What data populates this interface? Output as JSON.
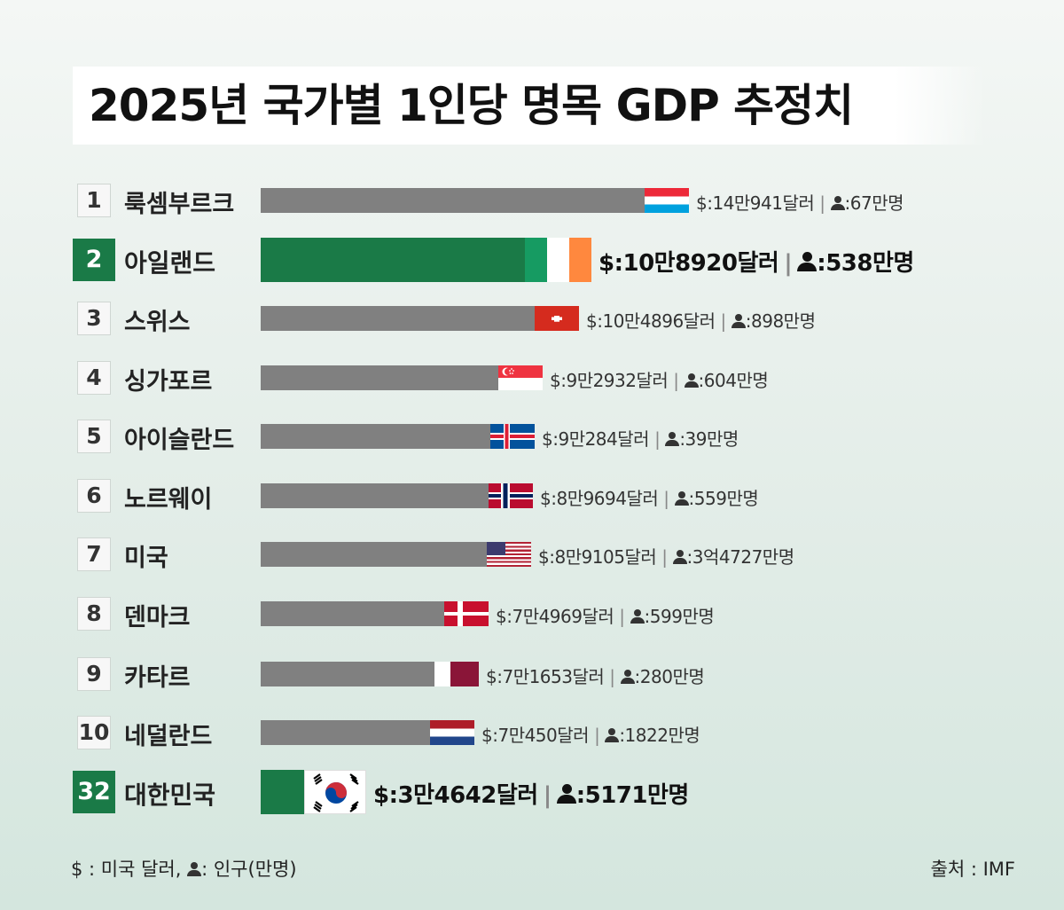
{
  "chart_data": {
    "type": "bar",
    "title": "2025년 국가별 1인당 명목 GDP 추정치",
    "orientation": "horizontal",
    "series": [
      {
        "name": "1인당 명목 GDP (달러)",
        "values": [
          140941,
          108920,
          104896,
          92932,
          90284,
          89694,
          89105,
          74969,
          71653,
          70450,
          34642
        ]
      }
    ],
    "rows": [
      {
        "rank": "1",
        "country": "룩셈부르크",
        "gdp": 140941,
        "gdp_label": "$:14만941달러",
        "pop_label": ":67만명",
        "flag": "flag-luxembourg-icon",
        "highlight": false
      },
      {
        "rank": "2",
        "country": "아일랜드",
        "gdp": 108920,
        "gdp_label": "$:10만8920달러",
        "pop_label": ":538만명",
        "flag": "flag-ireland-icon",
        "highlight": true
      },
      {
        "rank": "3",
        "country": "스위스",
        "gdp": 104896,
        "gdp_label": "$:10만4896달러",
        "pop_label": ":898만명",
        "flag": "flag-switzerland-icon",
        "highlight": false
      },
      {
        "rank": "4",
        "country": "싱가포르",
        "gdp": 92932,
        "gdp_label": "$:9만2932달러",
        "pop_label": ":604만명",
        "flag": "flag-singapore-icon",
        "highlight": false
      },
      {
        "rank": "5",
        "country": "아이슬란드",
        "gdp": 90284,
        "gdp_label": "$:9만284달러",
        "pop_label": ":39만명",
        "flag": "flag-iceland-icon",
        "highlight": false
      },
      {
        "rank": "6",
        "country": "노르웨이",
        "gdp": 89694,
        "gdp_label": "$:8만9694달러",
        "pop_label": ":559만명",
        "flag": "flag-norway-icon",
        "highlight": false
      },
      {
        "rank": "7",
        "country": "미국",
        "gdp": 89105,
        "gdp_label": "$:8만9105달러",
        "pop_label": ":3억4727만명",
        "flag": "flag-usa-icon",
        "highlight": false
      },
      {
        "rank": "8",
        "country": "덴마크",
        "gdp": 74969,
        "gdp_label": "$:7만4969달러",
        "pop_label": ":599만명",
        "flag": "flag-denmark-icon",
        "highlight": false
      },
      {
        "rank": "9",
        "country": "카타르",
        "gdp": 71653,
        "gdp_label": "$:7만1653달러",
        "pop_label": ":280만명",
        "flag": "flag-qatar-icon",
        "highlight": false
      },
      {
        "rank": "10",
        "country": "네덜란드",
        "gdp": 70450,
        "gdp_label": "$:7만450달러",
        "pop_label": ":1822만명",
        "flag": "flag-netherlands-icon",
        "highlight": false
      },
      {
        "rank": "32",
        "country": "대한민국",
        "gdp": 34642,
        "gdp_label": "$:3만4642달러",
        "pop_label": ":5171만명",
        "flag": "flag-korea-icon",
        "highlight": true
      }
    ],
    "colors": {
      "bar": "#808080",
      "highlight": "#1a7a47"
    }
  },
  "legend": {
    "dollar": "$ : 미국 달러,",
    "population": ": 인구(만명)"
  },
  "source": "출처 : IMF"
}
